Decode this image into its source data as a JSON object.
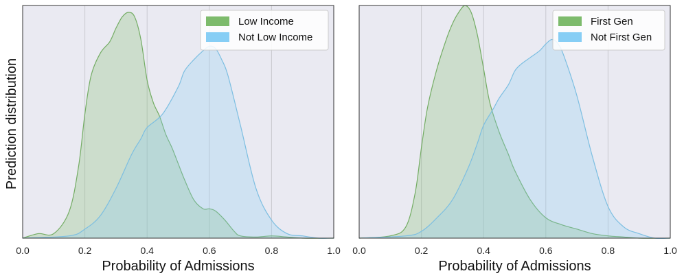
{
  "chart_data": [
    {
      "type": "area",
      "xlabel": "Probability of Admissions",
      "ylabel": "Prediction distribution",
      "xlim": [
        0.0,
        1.0
      ],
      "ylim": [
        0,
        1.0
      ],
      "xticks": [
        "0.0",
        "0.2",
        "0.4",
        "0.6",
        "0.8",
        "1.0"
      ],
      "grid": true,
      "legend_position": "top-right",
      "series": [
        {
          "name": "Low Income",
          "color": "#7dbb6c",
          "x": [
            0.0,
            0.05,
            0.1,
            0.15,
            0.18,
            0.2,
            0.22,
            0.25,
            0.28,
            0.3,
            0.32,
            0.34,
            0.36,
            0.38,
            0.4,
            0.42,
            0.44,
            0.46,
            0.48,
            0.5,
            0.52,
            0.55,
            0.58,
            0.6,
            0.62,
            0.65,
            0.68,
            0.7,
            0.75,
            0.8,
            0.85,
            0.9,
            1.0
          ],
          "values": [
            0.0,
            0.02,
            0.02,
            0.12,
            0.32,
            0.55,
            0.72,
            0.82,
            0.87,
            0.93,
            0.98,
            1.0,
            0.98,
            0.88,
            0.7,
            0.6,
            0.54,
            0.46,
            0.4,
            0.33,
            0.26,
            0.17,
            0.13,
            0.13,
            0.12,
            0.08,
            0.03,
            0.01,
            0.005,
            0.01,
            0.005,
            0.0,
            0.0
          ]
        },
        {
          "name": "Not Low Income",
          "color": "#87cef5",
          "x": [
            0.0,
            0.15,
            0.2,
            0.25,
            0.3,
            0.35,
            0.38,
            0.4,
            0.45,
            0.5,
            0.52,
            0.55,
            0.58,
            0.6,
            0.62,
            0.64,
            0.66,
            0.7,
            0.75,
            0.8,
            0.85,
            0.9,
            0.95,
            1.0
          ],
          "values": [
            0.0,
            0.01,
            0.04,
            0.1,
            0.22,
            0.37,
            0.44,
            0.49,
            0.55,
            0.67,
            0.74,
            0.79,
            0.83,
            0.85,
            0.84,
            0.79,
            0.72,
            0.5,
            0.22,
            0.08,
            0.02,
            0.01,
            0.0,
            0.0
          ]
        }
      ]
    },
    {
      "type": "area",
      "xlabel": "Probability of Admissions",
      "ylabel": "",
      "xlim": [
        0.0,
        1.0
      ],
      "ylim": [
        0,
        1.0
      ],
      "xticks": [
        "0.0",
        "0.2",
        "0.4",
        "0.6",
        "0.8",
        "1.0"
      ],
      "grid": true,
      "legend_position": "top-right",
      "series": [
        {
          "name": "First Gen",
          "color": "#7dbb6c",
          "x": [
            0.0,
            0.1,
            0.15,
            0.18,
            0.2,
            0.22,
            0.25,
            0.28,
            0.3,
            0.32,
            0.34,
            0.36,
            0.38,
            0.4,
            0.42,
            0.45,
            0.48,
            0.5,
            0.55,
            0.6,
            0.65,
            0.7,
            0.75,
            0.8,
            0.85,
            0.9,
            1.0
          ],
          "values": [
            0.0,
            0.01,
            0.05,
            0.2,
            0.4,
            0.58,
            0.75,
            0.88,
            0.95,
            1.0,
            1.03,
            1.0,
            0.9,
            0.75,
            0.6,
            0.47,
            0.37,
            0.3,
            0.17,
            0.09,
            0.06,
            0.04,
            0.02,
            0.01,
            0.005,
            0.0,
            0.0
          ]
        },
        {
          "name": "Not First Gen",
          "color": "#87cef5",
          "x": [
            0.0,
            0.15,
            0.2,
            0.25,
            0.3,
            0.35,
            0.38,
            0.4,
            0.43,
            0.45,
            0.48,
            0.5,
            0.52,
            0.55,
            0.58,
            0.6,
            0.62,
            0.64,
            0.66,
            0.7,
            0.75,
            0.8,
            0.85,
            0.9,
            0.95,
            1.0
          ],
          "values": [
            0.0,
            0.01,
            0.03,
            0.09,
            0.17,
            0.31,
            0.42,
            0.5,
            0.57,
            0.62,
            0.68,
            0.74,
            0.77,
            0.8,
            0.83,
            0.86,
            0.88,
            0.86,
            0.8,
            0.63,
            0.36,
            0.14,
            0.05,
            0.02,
            0.0,
            0.0
          ]
        }
      ]
    }
  ]
}
